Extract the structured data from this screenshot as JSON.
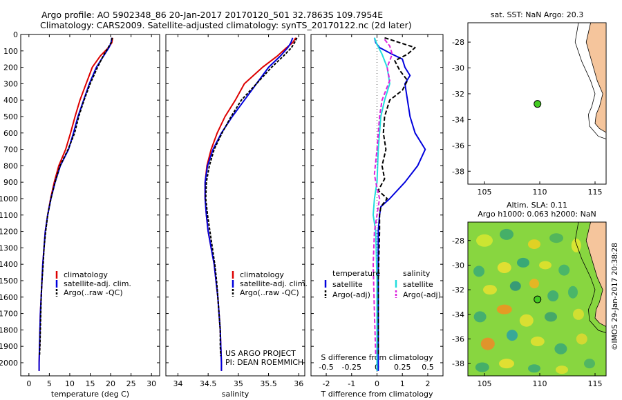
{
  "header": {
    "line1": "Argo profile: AO 5902348_86 20-Jan-2017 20170120_501 32.7863S 109.7954E",
    "line2": "Climatology: CARS2009. Satellite-adjusted climatology: synTS_20170122.nc (2d later)"
  },
  "map_top": {
    "title": "sat. SST: NaN Argo: 20.3"
  },
  "map_bottom": {
    "title1": "Altim. SLA: 0.11",
    "title2": "Argo h1000: 0.063 h2000: NaN"
  },
  "credit": "©IMOS 29-Jan-2017 20:38:28",
  "project_note": {
    "line1": "US ARGO PROJECT",
    "line2": "PI: DEAN ROEMMICH"
  },
  "colors": {
    "climatology": "#dd0000",
    "satellite": "#0000dd",
    "argo": "#000000",
    "sal_satellite": "#22dddd",
    "sal_argo": "#dd22dd",
    "land": "#f5c59c"
  },
  "chart_data": [
    {
      "type": "line",
      "xlabel": "temperature (deg C)",
      "xlim": [
        -2,
        32
      ],
      "xticks": [
        0,
        5,
        10,
        15,
        20,
        25,
        30
      ],
      "ylim": [
        2080,
        0
      ],
      "yticks": [
        0,
        100,
        200,
        300,
        400,
        500,
        600,
        700,
        800,
        900,
        1000,
        1100,
        1200,
        1300,
        1400,
        1500,
        1600,
        1700,
        1800,
        1900,
        2000
      ],
      "legend": [
        "climatology",
        "satellite-adj. clim.",
        "Argo(..raw -QC)"
      ],
      "series": [
        {
          "name": "climatology",
          "points": [
            [
              20.5,
              20
            ],
            [
              20.3,
              50
            ],
            [
              19.5,
              80
            ],
            [
              17.5,
              130
            ],
            [
              15.5,
              200
            ],
            [
              14.0,
              300
            ],
            [
              12.5,
              400
            ],
            [
              11.3,
              500
            ],
            [
              10.2,
              600
            ],
            [
              9.0,
              700
            ],
            [
              7.3,
              800
            ],
            [
              6.2,
              900
            ],
            [
              5.3,
              1000
            ],
            [
              4.6,
              1100
            ],
            [
              4.0,
              1200
            ],
            [
              3.7,
              1300
            ],
            [
              3.4,
              1400
            ],
            [
              3.2,
              1500
            ],
            [
              3.0,
              1600
            ],
            [
              2.8,
              1700
            ],
            [
              2.7,
              1800
            ],
            [
              2.6,
              1900
            ],
            [
              2.5,
              2000
            ],
            [
              2.5,
              2050
            ]
          ]
        },
        {
          "name": "satellite-adj. clim.",
          "points": [
            [
              20.3,
              20
            ],
            [
              20.1,
              50
            ],
            [
              19.6,
              80
            ],
            [
              18.3,
              130
            ],
            [
              16.5,
              200
            ],
            [
              14.8,
              300
            ],
            [
              13.4,
              400
            ],
            [
              12.0,
              500
            ],
            [
              10.9,
              600
            ],
            [
              9.7,
              700
            ],
            [
              7.7,
              800
            ],
            [
              6.4,
              900
            ],
            [
              5.4,
              1000
            ],
            [
              4.6,
              1100
            ],
            [
              4.0,
              1200
            ],
            [
              3.7,
              1300
            ],
            [
              3.4,
              1400
            ],
            [
              3.2,
              1500
            ],
            [
              3.0,
              1600
            ],
            [
              2.8,
              1700
            ],
            [
              2.7,
              1800
            ],
            [
              2.6,
              1900
            ],
            [
              2.5,
              2000
            ],
            [
              2.5,
              2050
            ]
          ]
        },
        {
          "name": "Argo(..raw -QC)",
          "points": [
            [
              20.4,
              20
            ],
            [
              20.1,
              50
            ],
            [
              19.4,
              80
            ],
            [
              18.2,
              130
            ],
            [
              16.8,
              200
            ],
            [
              15.0,
              300
            ],
            [
              13.5,
              400
            ],
            [
              12.2,
              500
            ],
            [
              11.2,
              600
            ],
            [
              9.6,
              700
            ],
            [
              7.6,
              800
            ],
            [
              6.4,
              900
            ],
            [
              5.4,
              1000
            ],
            [
              4.6,
              1100
            ],
            [
              4.1,
              1200
            ],
            [
              3.7,
              1300
            ],
            [
              3.5,
              1400
            ],
            [
              3.2,
              1500
            ],
            [
              3.0,
              1600
            ],
            [
              2.9,
              1700
            ],
            [
              2.8,
              1800
            ],
            [
              2.7,
              1900
            ],
            [
              2.6,
              1960
            ]
          ]
        }
      ]
    },
    {
      "type": "line",
      "xlabel": "salinity",
      "xlim": [
        33.8,
        36.1
      ],
      "xticks": [
        34,
        34.5,
        35,
        35.5,
        36
      ],
      "ylim": [
        2080,
        0
      ],
      "legend": [
        "climatology",
        "satellite-adj. clim.",
        "Argo(..raw -QC)"
      ],
      "series": [
        {
          "name": "climatology",
          "points": [
            [
              35.95,
              20
            ],
            [
              35.9,
              50
            ],
            [
              35.8,
              80
            ],
            [
              35.65,
              130
            ],
            [
              35.4,
              200
            ],
            [
              35.1,
              300
            ],
            [
              34.95,
              400
            ],
            [
              34.78,
              500
            ],
            [
              34.65,
              600
            ],
            [
              34.55,
              700
            ],
            [
              34.48,
              800
            ],
            [
              34.45,
              900
            ],
            [
              34.45,
              1000
            ],
            [
              34.47,
              1100
            ],
            [
              34.5,
              1200
            ],
            [
              34.55,
              1300
            ],
            [
              34.6,
              1400
            ],
            [
              34.63,
              1500
            ],
            [
              34.66,
              1600
            ],
            [
              34.68,
              1700
            ],
            [
              34.7,
              1800
            ],
            [
              34.71,
              1900
            ],
            [
              34.72,
              2000
            ],
            [
              34.72,
              2050
            ]
          ]
        },
        {
          "name": "satellite-adj. clim.",
          "points": [
            [
              35.9,
              20
            ],
            [
              35.87,
              50
            ],
            [
              35.82,
              80
            ],
            [
              35.7,
              130
            ],
            [
              35.5,
              200
            ],
            [
              35.3,
              300
            ],
            [
              35.1,
              400
            ],
            [
              34.9,
              500
            ],
            [
              34.72,
              600
            ],
            [
              34.58,
              700
            ],
            [
              34.49,
              800
            ],
            [
              34.45,
              900
            ],
            [
              34.45,
              1000
            ],
            [
              34.47,
              1100
            ],
            [
              34.5,
              1200
            ],
            [
              34.55,
              1300
            ],
            [
              34.6,
              1400
            ],
            [
              34.63,
              1500
            ],
            [
              34.66,
              1600
            ],
            [
              34.68,
              1700
            ],
            [
              34.7,
              1800
            ],
            [
              34.71,
              1900
            ],
            [
              34.72,
              2000
            ],
            [
              34.72,
              2050
            ]
          ]
        },
        {
          "name": "Argo(..raw -QC)",
          "points": [
            [
              35.97,
              20
            ],
            [
              35.93,
              50
            ],
            [
              35.88,
              80
            ],
            [
              35.75,
              130
            ],
            [
              35.55,
              200
            ],
            [
              35.3,
              300
            ],
            [
              35.05,
              400
            ],
            [
              34.88,
              500
            ],
            [
              34.73,
              600
            ],
            [
              34.6,
              700
            ],
            [
              34.52,
              800
            ],
            [
              34.47,
              900
            ],
            [
              34.46,
              1000
            ],
            [
              34.49,
              1100
            ],
            [
              34.53,
              1200
            ],
            [
              34.57,
              1300
            ],
            [
              34.61,
              1400
            ],
            [
              34.64,
              1500
            ],
            [
              34.66,
              1600
            ],
            [
              34.68,
              1700
            ],
            [
              34.7,
              1800
            ],
            [
              34.7,
              1900
            ],
            [
              34.71,
              1960
            ]
          ]
        }
      ]
    },
    {
      "type": "line",
      "xlabel": "T difference from climatology",
      "top_label": "S difference from climatology",
      "xlim": [
        -2.6,
        2.6
      ],
      "xticks": [
        -2,
        -1,
        0,
        1,
        2
      ],
      "top_ticks": [
        "-0.5",
        "-0.25",
        "0",
        "0.25",
        "0.5"
      ],
      "ylim": [
        2080,
        0
      ],
      "legend_headers": [
        "temperature",
        "salinity"
      ],
      "legend": [
        "satellite",
        "Argo(-adj)",
        "satellite",
        "Argo(-adj)"
      ],
      "series": [
        {
          "name": "satellite",
          "points": [
            [
              -0.1,
              20
            ],
            [
              -0.05,
              50
            ],
            [
              0.1,
              80
            ],
            [
              0.6,
              120
            ],
            [
              1.0,
              150
            ],
            [
              1.1,
              200
            ],
            [
              1.3,
              250
            ],
            [
              1.1,
              300
            ],
            [
              1.2,
              400
            ],
            [
              1.3,
              500
            ],
            [
              1.5,
              600
            ],
            [
              1.9,
              700
            ],
            [
              1.6,
              800
            ],
            [
              1.1,
              900
            ],
            [
              0.5,
              1000
            ],
            [
              0.15,
              1050
            ],
            [
              0.1,
              1100
            ],
            [
              0.05,
              1200
            ],
            [
              0.05,
              1500
            ],
            [
              0.05,
              2000
            ],
            [
              0.05,
              2050
            ]
          ]
        },
        {
          "name": "Argo(-adj)",
          "points": [
            [
              0.3,
              20
            ],
            [
              0.9,
              50
            ],
            [
              1.5,
              80
            ],
            [
              1.2,
              120
            ],
            [
              0.7,
              160
            ],
            [
              0.9,
              220
            ],
            [
              1.2,
              280
            ],
            [
              1.0,
              340
            ],
            [
              0.5,
              400
            ],
            [
              0.3,
              500
            ],
            [
              0.25,
              600
            ],
            [
              0.35,
              700
            ],
            [
              0.2,
              800
            ],
            [
              0.3,
              880
            ],
            [
              0.05,
              950
            ],
            [
              0.4,
              1000
            ],
            [
              0.15,
              1050
            ],
            [
              0.1,
              1100
            ],
            [
              0.1,
              1200
            ],
            [
              0.05,
              1500
            ],
            [
              0.05,
              1960
            ]
          ]
        },
        {
          "name": "satellite",
          "points": [
            [
              -0.1,
              20
            ],
            [
              0.0,
              60
            ],
            [
              0.2,
              120
            ],
            [
              0.4,
              200
            ],
            [
              0.5,
              300
            ],
            [
              0.3,
              400
            ],
            [
              0.15,
              500
            ],
            [
              0.05,
              700
            ],
            [
              0.0,
              900
            ],
            [
              -0.1,
              1000
            ],
            [
              -0.15,
              1100
            ],
            [
              -0.05,
              1200
            ],
            [
              0.0,
              1500
            ],
            [
              0.0,
              2050
            ]
          ]
        },
        {
          "name": "Argo(-adj)",
          "points": [
            [
              0.3,
              30
            ],
            [
              0.5,
              70
            ],
            [
              0.6,
              120
            ],
            [
              0.4,
              200
            ],
            [
              0.5,
              280
            ],
            [
              0.2,
              400
            ],
            [
              0.1,
              500
            ],
            [
              0.0,
              700
            ],
            [
              -0.1,
              850
            ],
            [
              -0.05,
              900
            ],
            [
              0.1,
              1000
            ],
            [
              -0.1,
              1200
            ],
            [
              -0.15,
              1400
            ],
            [
              -0.1,
              1700
            ],
            [
              -0.05,
              1960
            ]
          ]
        }
      ]
    }
  ],
  "map_top_axes": {
    "lon_ticks": [
      105,
      110,
      115
    ],
    "lat_ticks": [
      -28,
      -30,
      -32,
      -34,
      -36,
      -38
    ],
    "lon_range": [
      103.5,
      116
    ],
    "lat_range": [
      -39,
      -26.5
    ],
    "float_lon": 109.7954,
    "float_lat": -32.7863
  },
  "map_bottom_axes": {
    "lon_ticks": [
      105,
      110,
      115
    ],
    "lat_ticks": [
      -28,
      -30,
      -32,
      -34,
      -36,
      -38
    ],
    "lon_range": [
      103.5,
      116
    ],
    "lat_range": [
      -39,
      -26.5
    ]
  }
}
